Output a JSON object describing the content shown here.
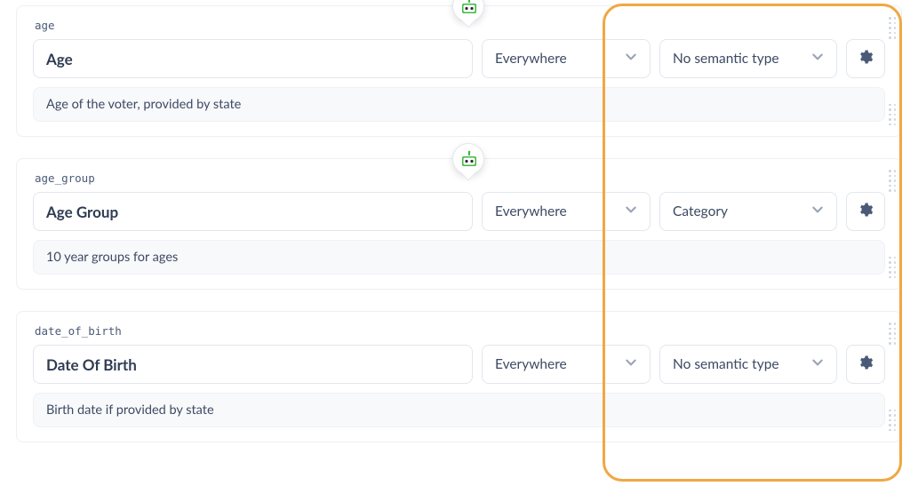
{
  "highlight": {
    "border_color": "#f0a742"
  },
  "fields": [
    {
      "key": "age",
      "title": "Age",
      "visibility": "Everywhere",
      "semantic": "No semantic type",
      "description": "Age of the voter, provided by state",
      "has_badge": true
    },
    {
      "key": "age_group",
      "title": "Age Group",
      "visibility": "Everywhere",
      "semantic": "Category",
      "description": "10 year groups for ages",
      "has_badge": true
    },
    {
      "key": "date_of_birth",
      "title": "Date Of Birth",
      "visibility": "Everywhere",
      "semantic": "No semantic type",
      "description": "Birth date if provided by state",
      "has_badge": false
    }
  ]
}
